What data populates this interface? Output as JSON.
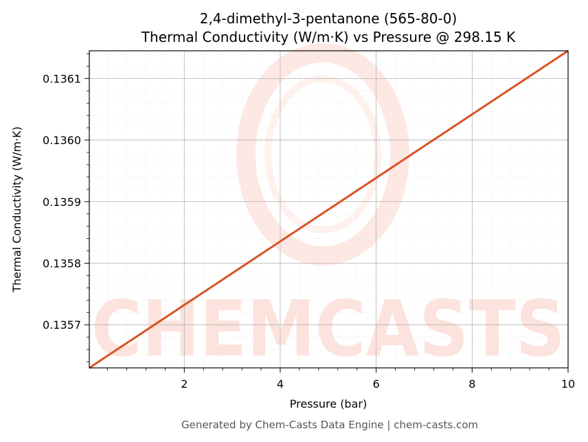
{
  "chart_data": {
    "type": "line",
    "title_line1": "2,4-dimethyl-3-pentanone (565-80-0)",
    "title_line2": "Thermal Conductivity (W/m·K) vs Pressure @ 298.15 K",
    "xlabel": "Pressure (bar)",
    "ylabel": "Thermal Conductivity (W/m·K)",
    "xlim": [
      0.02,
      10
    ],
    "ylim": [
      0.13563,
      0.136145
    ],
    "xticks": [
      2,
      4,
      6,
      8,
      10
    ],
    "xtick_labels": [
      "2",
      "4",
      "6",
      "8",
      "10"
    ],
    "yticks": [
      0.1357,
      0.1358,
      0.1359,
      0.136,
      0.1361
    ],
    "ytick_labels": [
      "0.1357",
      "0.1358",
      "0.1359",
      "0.1360",
      "0.1361"
    ],
    "grid": true,
    "series": [
      {
        "color": "#d95323",
        "x": [
          0.02,
          10
        ],
        "y": [
          0.13563,
          0.136145
        ]
      }
    ]
  },
  "watermark": {
    "text": "CHEMCASTS",
    "color": "#fde3dd"
  },
  "footer": "Generated by Chem-Casts Data Engine | chem-casts.com"
}
